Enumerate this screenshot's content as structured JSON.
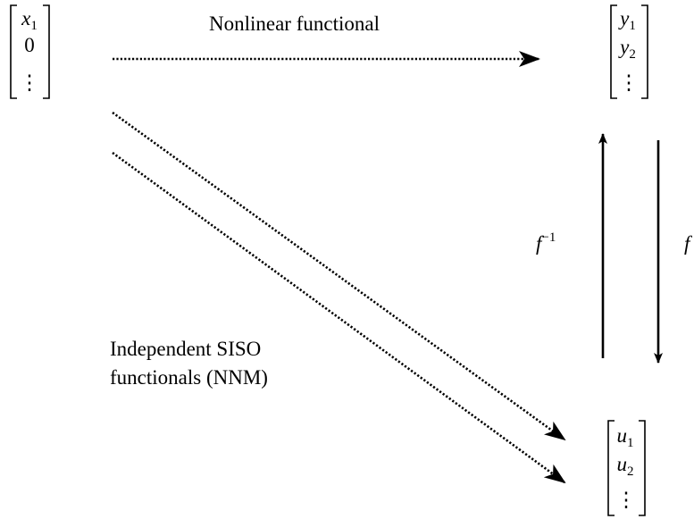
{
  "vectors": {
    "input": [
      {
        "text": "x",
        "sub": "1"
      },
      {
        "text": "0"
      },
      {
        "text": "⋮"
      }
    ],
    "output": [
      {
        "text": "y",
        "sub": "1"
      },
      {
        "text": "y",
        "sub": "2"
      },
      {
        "text": "⋮"
      }
    ],
    "modal": [
      {
        "text": "u",
        "sub": "1"
      },
      {
        "text": "u",
        "sub": "2"
      },
      {
        "text": "⋮"
      }
    ]
  },
  "labels": {
    "nonlinear": "Nonlinear functional",
    "independent": [
      "Independent SISO",
      "functionals (NNM)"
    ],
    "inverse": {
      "text": "f",
      "sup": "−1"
    },
    "forward": "f"
  }
}
